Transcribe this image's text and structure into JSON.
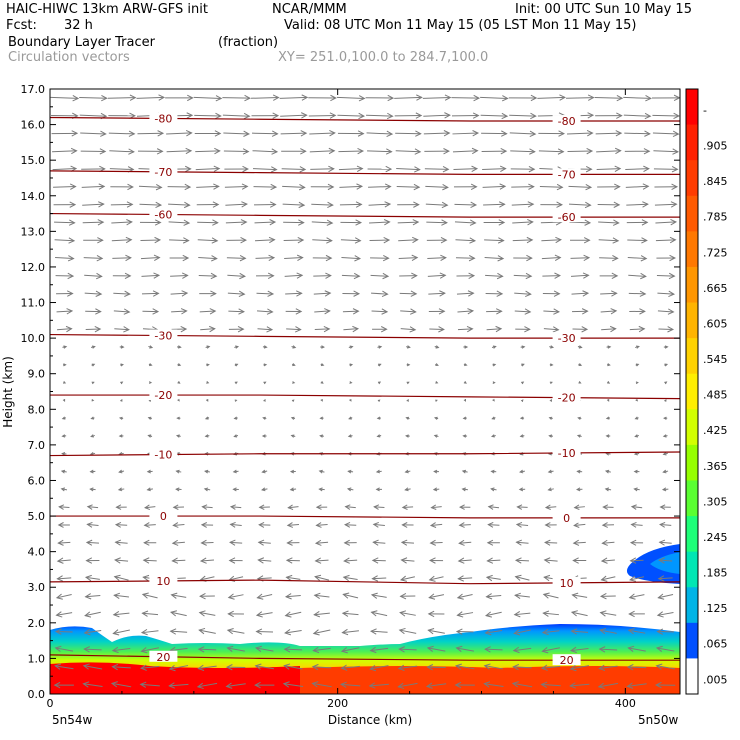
{
  "header": {
    "title_left": "HAIC-HIWC 13km ARW-GFS init",
    "ncar": "NCAR/MMM",
    "init": "Init: 00 UTC Sun 10 May 15",
    "fcst_label": "Fcst:",
    "fcst_value": "32 h",
    "valid": "Valid: 08 UTC Mon 11 May 15 (05 LST Mon 11 May 15)",
    "field": "Boundary Layer Tracer",
    "field_units": "(fraction)",
    "vectors": "Circulation vectors",
    "xy": "XY= 251.0,100.0 to 284.7,100.0"
  },
  "chart_data": {
    "type": "heatmap",
    "ylabel": "Height (km)",
    "xlabel": "Distance (km)",
    "xlim": [
      0,
      438
    ],
    "ylim": [
      0,
      17
    ],
    "y_ticks": [
      "0.0",
      "1.0",
      "2.0",
      "3.0",
      "4.0",
      "5.0",
      "6.0",
      "7.0",
      "8.0",
      "9.0",
      "10.0",
      "11.0",
      "12.0",
      "13.0",
      "14.0",
      "15.0",
      "16.0",
      "17.0"
    ],
    "x_ticks": [
      {
        "v": 0,
        "label": "0"
      },
      {
        "v": 200,
        "label": "200"
      },
      {
        "v": 400,
        "label": "400"
      }
    ],
    "x_end_labels": {
      "left": "5n54w",
      "right": "5n50w"
    },
    "colorbar": {
      "labels": [
        "-",
        ".905",
        ".845",
        ".785",
        ".725",
        ".665",
        ".605",
        ".545",
        ".485",
        ".425",
        ".365",
        ".305",
        ".245",
        ".185",
        ".125",
        ".065",
        ".005"
      ],
      "colors": [
        "#ff0000",
        "#ff2000",
        "#ff3c00",
        "#ff5a00",
        "#ff7800",
        "#ff9600",
        "#ffb400",
        "#ffd200",
        "#ffee00",
        "#d2ff00",
        "#96ff00",
        "#5aff32",
        "#1eff78",
        "#00e6b4",
        "#00b4e6",
        "#0050ff",
        "#ffffff"
      ]
    },
    "temperature_contours": [
      {
        "label": "-80",
        "values": [
          16.2,
          16.15,
          16.1,
          16.1
        ]
      },
      {
        "label": "-70",
        "values": [
          14.7,
          14.65,
          14.6,
          14.6
        ]
      },
      {
        "label": "-60",
        "values": [
          13.5,
          13.45,
          13.4,
          13.4
        ]
      },
      {
        "label": "-30",
        "values": [
          10.1,
          10.05,
          10.0,
          10.0
        ]
      },
      {
        "label": "-20",
        "values": [
          8.4,
          8.4,
          8.35,
          8.3
        ]
      },
      {
        "label": "-10",
        "values": [
          6.7,
          6.75,
          6.75,
          6.8
        ]
      },
      {
        "label": "0",
        "values": [
          5.0,
          5.0,
          4.95,
          4.95
        ]
      },
      {
        "label": "10",
        "values": [
          3.15,
          3.2,
          3.1,
          3.15
        ]
      },
      {
        "label": "20",
        "values": [
          1.1,
          1.0,
          0.95,
          0.95
        ]
      }
    ]
  }
}
